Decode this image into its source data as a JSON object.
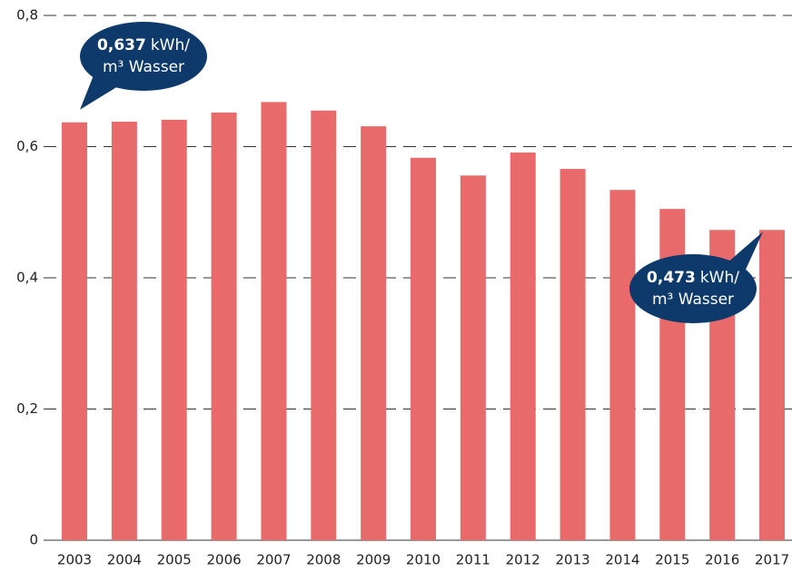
{
  "chart_data": {
    "type": "bar",
    "categories": [
      "2003",
      "2004",
      "2005",
      "2006",
      "2007",
      "2008",
      "2009",
      "2010",
      "2011",
      "2012",
      "2013",
      "2014",
      "2015",
      "2016",
      "2017"
    ],
    "values": [
      0.637,
      0.638,
      0.641,
      0.652,
      0.668,
      0.655,
      0.631,
      0.583,
      0.556,
      0.591,
      0.566,
      0.534,
      0.505,
      0.473,
      0.473
    ],
    "value_labels": [
      "0,637",
      null,
      null,
      null,
      null,
      null,
      null,
      null,
      null,
      null,
      null,
      null,
      null,
      null,
      "0,473"
    ],
    "annotation_unit": "kWh/",
    "annotation_text": "m³ Wasser",
    "color": "#e86a6a",
    "callout_color": "#0e3a6b",
    "ylim": [
      0,
      0.8
    ],
    "yticks": [
      0,
      {
        "value": 0.2,
        "label": "0,2"
      },
      {
        "value": 0.4,
        "label": "0,4"
      },
      {
        "value": 0.6,
        "label": "0,6"
      },
      {
        "value": 0.8,
        "label": "0,8"
      }
    ],
    "grid": true
  }
}
